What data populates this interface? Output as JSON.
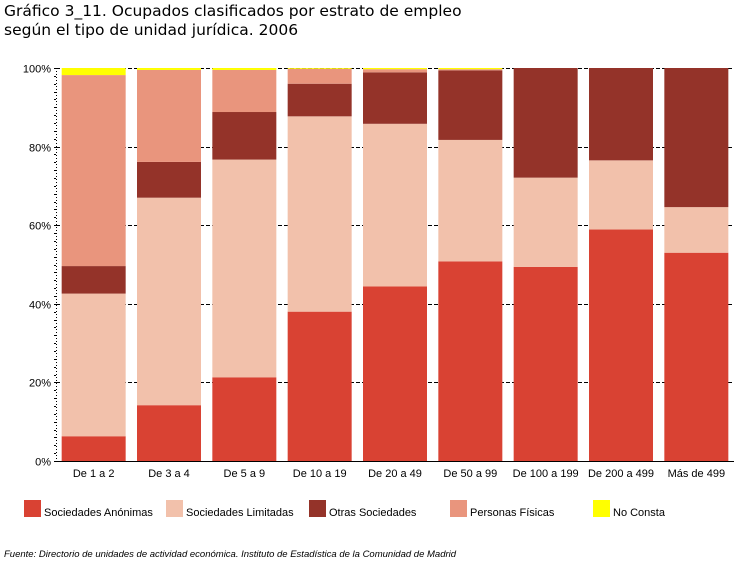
{
  "title_line1": "Gráfico 3_11. Ocupados clasificados por estrato de empleo",
  "title_line2": "según el tipo de unidad jurídica. 2006",
  "source": "Fuente: Directorio de unidades de actividad económica. Instituto de Estadística de la Comunidad de Madrid",
  "chart_data": {
    "type": "bar",
    "stacked": true,
    "percent": true,
    "categories": [
      "De 1 a 2",
      "De 3 a 4",
      "De 5 a 9",
      "De 10 a 19",
      "De 20 a 49",
      "De 50 a 99",
      "De 100 a 199",
      "De 200 a 499",
      "Más de 499"
    ],
    "series": [
      {
        "name": "Sociedades Anónimas",
        "color": "#d94233",
        "values": [
          6.3,
          14.2,
          21.3,
          38.0,
          44.4,
          50.8,
          49.4,
          58.9,
          53.0
        ]
      },
      {
        "name": "Sociedades Limitadas",
        "color": "#f2c1ab",
        "values": [
          36.3,
          52.8,
          55.4,
          49.7,
          41.4,
          30.9,
          22.7,
          17.6,
          11.6
        ]
      },
      {
        "name": "Otras Sociedades",
        "color": "#943329",
        "values": [
          7.0,
          9.1,
          12.1,
          8.3,
          13.1,
          17.7,
          27.9,
          23.5,
          35.4
        ]
      },
      {
        "name": "Personas Físicas",
        "color": "#e9957d",
        "values": [
          48.6,
          23.4,
          10.7,
          3.8,
          0.8,
          0.3,
          0.0,
          0.0,
          0.0
        ]
      },
      {
        "name": "No Consta",
        "color": "#ffff00",
        "values": [
          1.8,
          0.5,
          0.5,
          0.2,
          0.3,
          0.3,
          0.0,
          0.0,
          0.0
        ]
      }
    ],
    "ylim": [
      0,
      100
    ],
    "yticks": [
      "0%",
      "20%",
      "40%",
      "60%",
      "80%",
      "100%"
    ],
    "grid": true,
    "legend_position": "bottom"
  }
}
